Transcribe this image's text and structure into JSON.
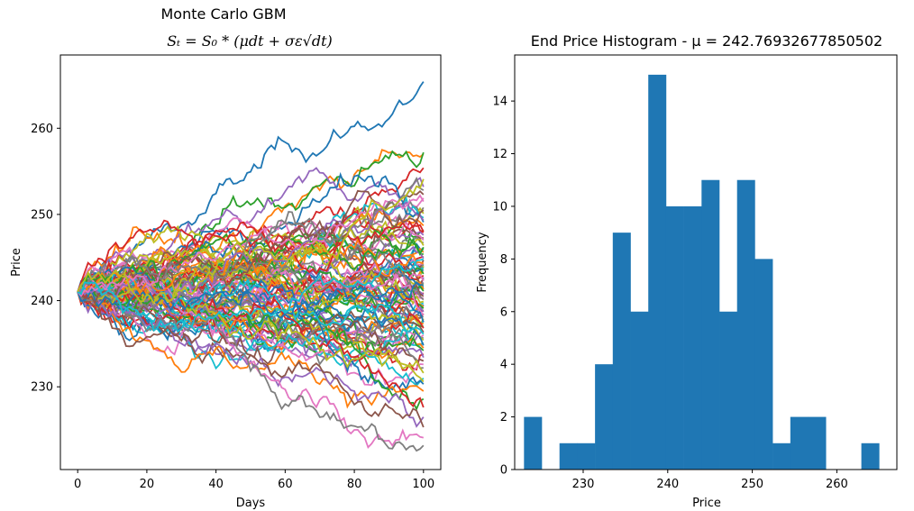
{
  "chart_data": [
    {
      "type": "line",
      "suptitle": "Monte Carlo GBM",
      "title_formula": "Sₜ = S₀ * (μdt + σε√dt)",
      "xlabel": "Days",
      "ylabel": "Price",
      "xlim": [
        -5,
        105
      ],
      "ylim": [
        220.4,
        268.5
      ],
      "xticks": [
        0,
        20,
        40,
        60,
        80,
        100
      ],
      "yticks": [
        230,
        240,
        250,
        260
      ],
      "x_days": 101,
      "start_value": 241,
      "end_values": [
        265.4,
        257.0,
        257.2,
        255.4,
        253.2,
        252.3,
        251.9,
        250.8,
        250.1,
        249.6,
        249.1,
        248.7,
        248.2,
        247.9,
        247.6,
        247.3,
        247.0,
        246.7,
        246.4,
        246.1,
        245.9,
        245.6,
        245.4,
        245.1,
        244.9,
        244.7,
        244.4,
        244.2,
        244.0,
        243.8,
        243.5,
        243.3,
        243.1,
        242.9,
        242.7,
        242.5,
        242.3,
        242.1,
        241.9,
        241.7,
        241.5,
        241.3,
        241.1,
        240.9,
        240.7,
        240.5,
        240.3,
        240.1,
        239.9,
        239.7,
        239.5,
        239.3,
        239.1,
        238.9,
        238.7,
        238.5,
        238.3,
        238.1,
        237.9,
        237.7,
        237.5,
        237.3,
        237.0,
        236.8,
        236.5,
        236.3,
        236.0,
        235.7,
        235.4,
        235.1,
        234.8,
        234.5,
        234.2,
        233.8,
        233.4,
        233.0,
        232.6,
        232.2,
        231.6,
        231.0,
        230.3,
        229.5,
        228.6,
        227.6,
        226.5,
        225.3,
        224.1,
        223.2,
        230.6,
        236.1,
        241.8,
        244.3,
        246.2,
        248.0,
        249.3,
        250.5,
        251.5,
        252.8,
        254.1,
        244.8
      ],
      "line_colors": [
        "#1f77b4",
        "#ff7f0e",
        "#2ca02c",
        "#d62728",
        "#9467bd",
        "#8c564b",
        "#e377c2",
        "#7f7f7f",
        "#bcbd22",
        "#17becf"
      ]
    },
    {
      "type": "bar",
      "title": "End Price Histogram - μ = 242.76932677850502",
      "xlabel": "Price",
      "ylabel": "Frequency",
      "xlim": [
        221.9,
        267.1
      ],
      "ylim": [
        0,
        15.75
      ],
      "xticks": [
        230,
        240,
        250,
        260
      ],
      "yticks": [
        0,
        2,
        4,
        6,
        8,
        10,
        12,
        14
      ],
      "bin_edges": [
        223.0,
        225.1,
        227.2,
        229.3,
        231.4,
        233.5,
        235.6,
        237.7,
        239.8,
        241.9,
        244.0,
        246.1,
        248.2,
        250.3,
        252.4,
        254.5,
        256.6,
        258.7,
        260.8,
        262.9,
        265.0
      ],
      "values": [
        2,
        0,
        1,
        1,
        4,
        9,
        6,
        15,
        10,
        10,
        11,
        6,
        11,
        8,
        1,
        2,
        2,
        0,
        0,
        1
      ],
      "bar_color": "#1f77b4"
    }
  ]
}
